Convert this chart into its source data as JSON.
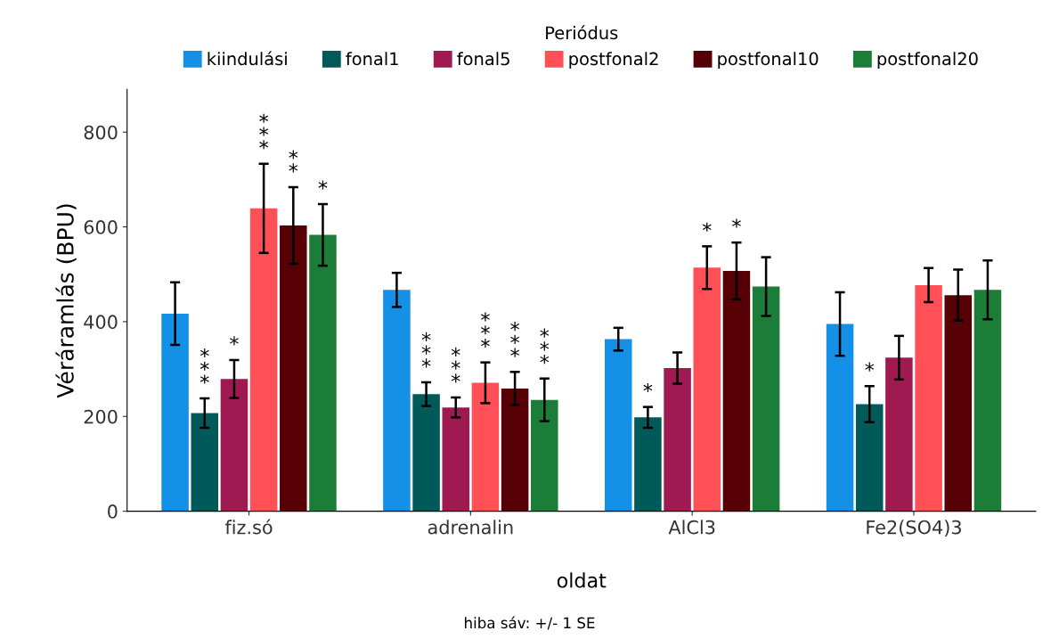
{
  "chart_data": {
    "type": "bar",
    "xlabel": "oldat",
    "ylabel": "Véráramlás (BPU)",
    "legend_title": "Periódus",
    "legend": "top",
    "categories": [
      "fiz.só",
      "adrenalin",
      "AlCl3",
      "Fe2(SO4)3"
    ],
    "ylim": [
      0,
      890
    ],
    "yticks": [
      0,
      200,
      400,
      600,
      800
    ],
    "grid": false,
    "series": [
      {
        "name": "kiindulási",
        "color": "#1490e6",
        "values": [
          417,
          467,
          363,
          395
        ],
        "errors": [
          66,
          36,
          24,
          67
        ],
        "value_labels": [
          null,
          null,
          null,
          null
        ]
      },
      {
        "name": "fonal1",
        "color": "#005a5a",
        "values": [
          207,
          247,
          198,
          226
        ],
        "errors": [
          31,
          25,
          22,
          38
        ],
        "value_labels": [
          "***",
          "***",
          "*",
          "*"
        ]
      },
      {
        "name": "fonal5",
        "color": "#9e1a50",
        "values": [
          279,
          219,
          302,
          324
        ],
        "errors": [
          40,
          21,
          33,
          46
        ],
        "value_labels": [
          "*",
          "***",
          null,
          null
        ]
      },
      {
        "name": "postfonal2",
        "color": "#ff5058",
        "values": [
          639,
          271,
          514,
          477
        ],
        "errors": [
          94,
          43,
          45,
          36
        ],
        "value_labels": [
          "***",
          "***",
          "*",
          null
        ]
      },
      {
        "name": "postfonal10",
        "color": "#560006",
        "values": [
          603,
          259,
          507,
          456
        ],
        "errors": [
          81,
          35,
          60,
          54
        ],
        "value_labels": [
          "**",
          "***",
          "*",
          null
        ]
      },
      {
        "name": "postfonal20",
        "color": "#1b7d37",
        "values": [
          583,
          235,
          474,
          467
        ],
        "errors": [
          65,
          45,
          62,
          62
        ],
        "value_labels": [
          "*",
          "***",
          null,
          null
        ]
      }
    ],
    "annotations": [
      "hiba sáv: +/- 1 SE"
    ]
  }
}
